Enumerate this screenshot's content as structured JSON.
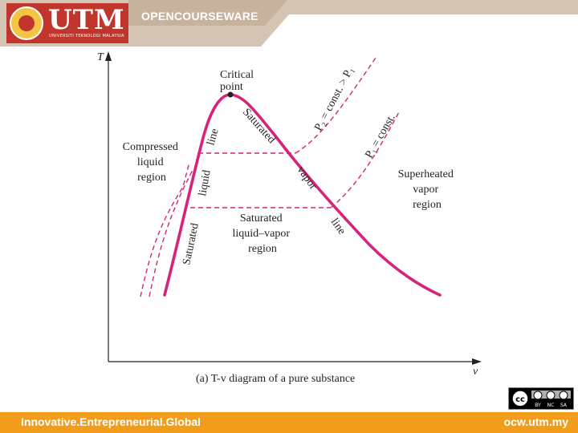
{
  "header": {
    "logo_text": "UTM",
    "logo_subtext": "UNIVERSITI TEKNOLOGI MALAYSIA",
    "section_title": "OPENCOURSEWARE"
  },
  "diagram": {
    "axis_y": "T",
    "axis_x": "v",
    "caption": "(a) T-v diagram of a pure substance",
    "critical_point": [
      "Critical",
      "point"
    ],
    "compressed_region": [
      "Compressed",
      "liquid",
      "region"
    ],
    "superheated_region": [
      "Superheated",
      "vapor",
      "region"
    ],
    "two_phase_region": [
      "Saturated",
      "liquid–vapor",
      "region"
    ],
    "sat_liquid_line": [
      "Saturated",
      "liquid",
      "line"
    ],
    "sat_vapor_line": [
      "Saturated",
      "vapor",
      "line"
    ],
    "isobar_p2": "P₂ = const. > P₁",
    "isobar_p1": "P₁ = const."
  },
  "license": {
    "badge": "cc",
    "terms": [
      "BY",
      "NC",
      "SA"
    ]
  },
  "footer": {
    "tagline": "Innovative.Entrepreneurial.Global",
    "site": "ocw.utm.my"
  },
  "colors": {
    "header_bar": "#d4c4b4",
    "footer_bar": "#f29c1b",
    "logo_red": "#c0362c",
    "curve": "#d6247a"
  }
}
